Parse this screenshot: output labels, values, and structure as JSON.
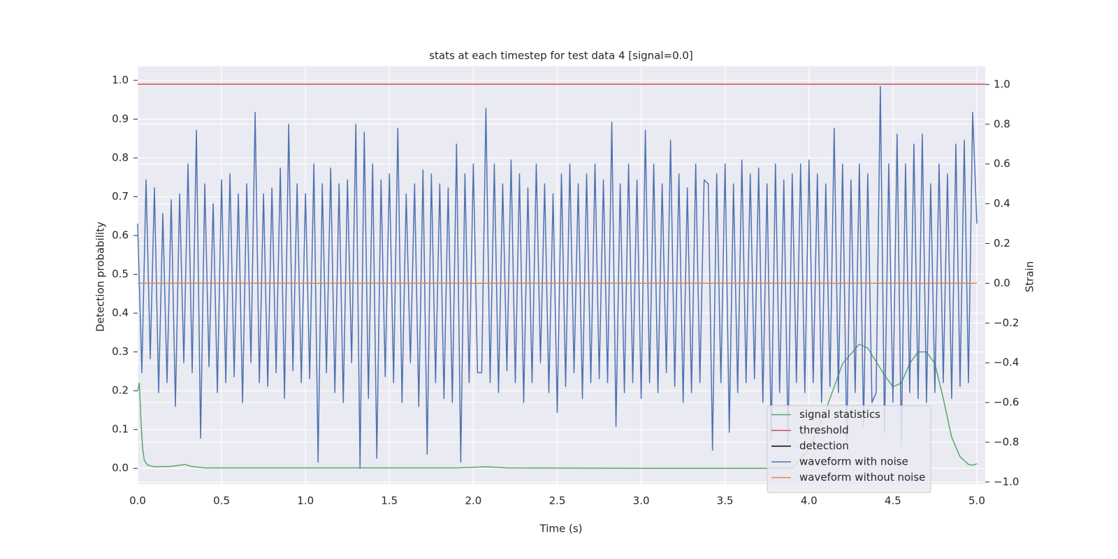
{
  "chart_data": {
    "type": "line",
    "title": "stats at each timestep for test data 4 [signal=0.0]",
    "x_label": "Time (s)",
    "y_label": "Detection probability",
    "y2_label": "Strain",
    "xlim": [
      0,
      5.05
    ],
    "ylim": [
      -0.041,
      1.036
    ],
    "y2lim": [
      -1.011,
      1.091
    ],
    "xticks": [
      {
        "value": 0,
        "label": "0.0"
      },
      0.5,
      {
        "value": 1,
        "label": "1.0"
      },
      1.5,
      {
        "value": 2,
        "label": "2.0"
      },
      2.5,
      {
        "value": 3,
        "label": "3.0"
      },
      3.5,
      {
        "value": 4,
        "label": "4.0"
      },
      4.5,
      {
        "value": 5,
        "label": "5.0"
      }
    ],
    "yticks": [
      {
        "value": 0,
        "label": "0.0"
      },
      0.1,
      0.2,
      0.3,
      0.4,
      0.5,
      0.6,
      0.7,
      0.8,
      0.9,
      {
        "value": 1,
        "label": "1.0"
      }
    ],
    "y2ticks": [
      {
        "value": -1,
        "label": "−1.0"
      },
      {
        "value": -0.8,
        "label": "−0.8"
      },
      {
        "value": -0.6,
        "label": "−0.6"
      },
      {
        "value": -0.4,
        "label": "−0.4"
      },
      {
        "value": -0.2,
        "label": "−0.2"
      },
      {
        "value": 0,
        "label": "0.0"
      },
      0.2,
      0.4,
      0.6,
      0.8,
      {
        "value": 1,
        "label": "1.0"
      }
    ],
    "grid": true,
    "legend": "lower right",
    "series": [
      {
        "name": "signal statistics",
        "color": "#55a868",
        "axis": "y",
        "x": [
          0,
          0.01,
          0.02,
          0.03,
          0.04,
          0.06,
          0.1,
          0.2,
          0.25,
          0.28,
          0.32,
          0.4,
          1.0,
          1.9,
          2.08,
          2.2,
          3.0,
          3.9,
          4.0,
          4.1,
          4.2,
          4.3,
          4.35,
          4.45,
          4.5,
          4.55,
          4.6,
          4.65,
          4.7,
          4.75,
          4.8,
          4.85,
          4.9,
          4.95,
          4.98,
          5.0
        ],
        "values": [
          0.2,
          0.22,
          0.12,
          0.05,
          0.02,
          0.008,
          0.004,
          0.005,
          0.008,
          0.01,
          0.005,
          0.001,
          0.001,
          0.001,
          0.004,
          0.001,
          0,
          0,
          0.05,
          0.15,
          0.27,
          0.32,
          0.31,
          0.24,
          0.21,
          0.22,
          0.27,
          0.3,
          0.3,
          0.27,
          0.18,
          0.08,
          0.03,
          0.01,
          0.008,
          0.012
        ]
      },
      {
        "name": "threshold",
        "color": "#c44e52",
        "axis": "y",
        "x": [
          0,
          5.05
        ],
        "values": [
          0.99,
          0.99
        ]
      },
      {
        "name": "detection",
        "color": "#000000",
        "axis": "y",
        "x": [
          0,
          5
        ],
        "values": [
          null,
          null
        ]
      },
      {
        "name": "waveform with noise",
        "color": "#4c72b0",
        "axis": "y2",
        "x": [
          0,
          0.025,
          0.05,
          0.075,
          0.1,
          0.125,
          0.15,
          0.175,
          0.2,
          0.225,
          0.25,
          0.275,
          0.3,
          0.325,
          0.35,
          0.375,
          0.4,
          0.425,
          0.45,
          0.475,
          0.5,
          0.525,
          0.55,
          0.575,
          0.6,
          0.625,
          0.65,
          0.675,
          0.7,
          0.725,
          0.75,
          0.775,
          0.8,
          0.825,
          0.85,
          0.875,
          0.9,
          0.925,
          0.95,
          0.975,
          1.0,
          1.025,
          1.05,
          1.075,
          1.1,
          1.125,
          1.15,
          1.175,
          1.2,
          1.225,
          1.25,
          1.275,
          1.3,
          1.325,
          1.35,
          1.375,
          1.4,
          1.425,
          1.45,
          1.475,
          1.5,
          1.525,
          1.55,
          1.575,
          1.6,
          1.625,
          1.65,
          1.675,
          1.7,
          1.725,
          1.75,
          1.775,
          1.8,
          1.825,
          1.85,
          1.875,
          1.9,
          1.925,
          1.95,
          1.975,
          2.0,
          2.025,
          2.05,
          2.075,
          2.1,
          2.125,
          2.15,
          2.175,
          2.2,
          2.225,
          2.25,
          2.275,
          2.3,
          2.325,
          2.35,
          2.375,
          2.4,
          2.425,
          2.45,
          2.475,
          2.5,
          2.525,
          2.55,
          2.575,
          2.6,
          2.625,
          2.65,
          2.675,
          2.7,
          2.725,
          2.75,
          2.775,
          2.8,
          2.825,
          2.85,
          2.875,
          2.9,
          2.925,
          2.95,
          2.975,
          3.0,
          3.025,
          3.05,
          3.075,
          3.1,
          3.125,
          3.15,
          3.175,
          3.2,
          3.225,
          3.25,
          3.275,
          3.3,
          3.325,
          3.35,
          3.375,
          3.4,
          3.425,
          3.45,
          3.475,
          3.5,
          3.525,
          3.55,
          3.575,
          3.6,
          3.625,
          3.65,
          3.675,
          3.7,
          3.725,
          3.75,
          3.775,
          3.8,
          3.825,
          3.85,
          3.875,
          3.9,
          3.925,
          3.95,
          3.975,
          4.0,
          4.025,
          4.05,
          4.075,
          4.1,
          4.125,
          4.15,
          4.175,
          4.2,
          4.225,
          4.25,
          4.275,
          4.3,
          4.325,
          4.35,
          4.375,
          4.4,
          4.425,
          4.45,
          4.475,
          4.5,
          4.525,
          4.55,
          4.575,
          4.6,
          4.625,
          4.65,
          4.675,
          4.7,
          4.725,
          4.75,
          4.775,
          4.8,
          4.825,
          4.85,
          4.875,
          4.9,
          4.925,
          4.95,
          4.975,
          5.0
        ],
        "values": [
          0.3,
          -0.45,
          0.52,
          -0.38,
          0.48,
          -0.55,
          0.35,
          -0.5,
          0.42,
          -0.62,
          0.45,
          -0.4,
          0.6,
          -0.45,
          0.77,
          -0.78,
          0.5,
          -0.42,
          0.4,
          -0.55,
          0.52,
          -0.5,
          0.55,
          -0.47,
          0.45,
          -0.6,
          0.5,
          -0.4,
          0.86,
          -0.5,
          0.45,
          -0.52,
          0.48,
          -0.45,
          0.58,
          -0.58,
          0.8,
          -0.44,
          0.5,
          -0.5,
          0.45,
          -0.48,
          0.6,
          -0.9,
          0.5,
          -0.45,
          0.58,
          -0.55,
          0.5,
          -0.6,
          0.52,
          -0.4,
          0.8,
          -0.93,
          0.76,
          -0.58,
          0.6,
          -0.88,
          0.52,
          -0.47,
          0.55,
          -0.5,
          0.78,
          -0.6,
          0.45,
          -0.4,
          0.5,
          -0.62,
          0.57,
          -0.86,
          0.55,
          -0.5,
          0.5,
          -0.58,
          0.48,
          -0.6,
          0.7,
          -0.9,
          0.55,
          -0.5,
          0.6,
          -0.45,
          -0.45,
          0.88,
          -0.5,
          0.6,
          -0.55,
          0.5,
          -0.44,
          0.62,
          -0.5,
          0.55,
          -0.6,
          0.48,
          -0.5,
          0.6,
          -0.4,
          0.5,
          -0.55,
          0.45,
          -0.65,
          0.55,
          -0.52,
          0.6,
          -0.45,
          0.5,
          -0.58,
          0.55,
          -0.5,
          0.6,
          -0.48,
          0.52,
          -0.5,
          0.81,
          -0.72,
          0.5,
          -0.55,
          0.6,
          -0.5,
          0.52,
          -0.58,
          0.77,
          -0.5,
          0.6,
          -0.55,
          0.5,
          -0.45,
          0.72,
          -0.52,
          0.55,
          -0.6,
          0.48,
          -0.55,
          0.6,
          -0.5,
          0.52,
          0.5,
          -0.84,
          0.55,
          -0.5,
          0.6,
          -0.75,
          0.5,
          -0.55,
          0.62,
          -0.5,
          0.55,
          -0.48,
          0.58,
          -0.6,
          0.5,
          -0.78,
          0.6,
          -0.55,
          0.52,
          -0.8,
          0.55,
          -0.5,
          0.6,
          -0.55,
          0.62,
          -0.5,
          0.55,
          -0.6,
          0.5,
          -0.52,
          0.78,
          -0.55,
          0.6,
          -0.8,
          0.52,
          -0.55,
          0.6,
          -0.72,
          0.55,
          -0.6,
          -0.55,
          0.99,
          -0.75,
          0.6,
          -0.6,
          0.75,
          -0.82,
          0.6,
          -0.55,
          0.7,
          -0.58,
          0.75,
          -0.6,
          0.5,
          -0.55,
          0.6,
          -0.5,
          0.55,
          -0.58,
          0.7,
          -0.52,
          0.72,
          -0.5,
          0.86,
          0.3
        ]
      },
      {
        "name": "waveform without noise",
        "color": "#dd8452",
        "axis": "y2",
        "x": [
          0,
          5
        ],
        "values": [
          0,
          0
        ]
      }
    ]
  }
}
